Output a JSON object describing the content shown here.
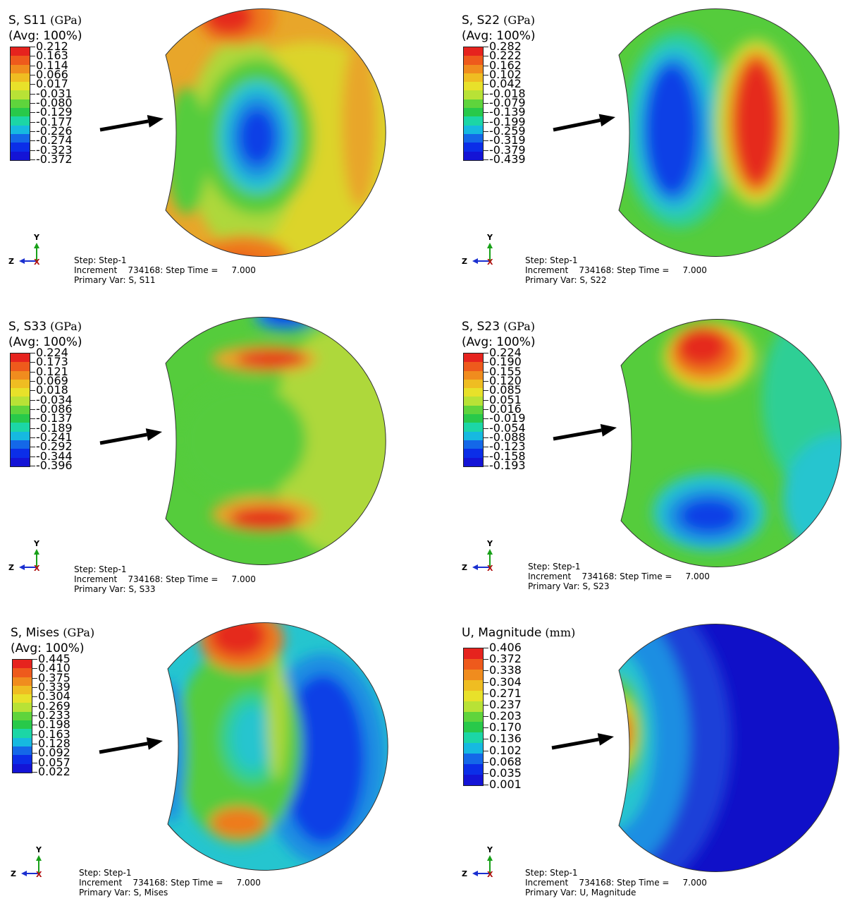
{
  "panels": [
    {
      "variable": "S, S11",
      "unit": "(GPa)",
      "avg": "(Avg: 100%)",
      "ticks": [
        "0.212",
        "0.163",
        "0.114",
        "0.066",
        "0.017",
        "-0.031",
        "-0.080",
        "-0.129",
        "-0.177",
        "-0.226",
        "-0.274",
        "-0.323",
        "-0.372"
      ],
      "step": "Step: Step-1",
      "increment": "Increment    734168: Step Time =     7.000",
      "primary_var": "Primary Var: S, S11"
    },
    {
      "variable": "S, S22",
      "unit": "(GPa)",
      "avg": "(Avg: 100%)",
      "ticks": [
        "0.282",
        "0.222",
        "0.162",
        "0.102",
        "0.042",
        "-0.018",
        "-0.079",
        "-0.139",
        "-0.199",
        "-0.259",
        "-0.319",
        "-0.379",
        "-0.439"
      ],
      "step": "Step: Step-1",
      "increment": "Increment    734168: Step Time =     7.000",
      "primary_var": "Primary Var: S, S22"
    },
    {
      "variable": "S, S33",
      "unit": "(GPa)",
      "avg": "(Avg: 100%)",
      "ticks": [
        "0.224",
        "0.173",
        "0.121",
        "0.069",
        "0.018",
        "-0.034",
        "-0.086",
        "-0.137",
        "-0.189",
        "-0.241",
        "-0.292",
        "-0.344",
        "-0.396"
      ],
      "step": "Step: Step-1",
      "increment": "Increment    734168: Step Time =     7.000",
      "primary_var": "Primary Var: S, S33"
    },
    {
      "variable": "S, S23",
      "unit": "(GPa)",
      "avg": "(Avg: 100%)",
      "ticks": [
        "0.224",
        "0.190",
        "0.155",
        "0.120",
        "0.085",
        "0.051",
        "0.016",
        "-0.019",
        "-0.054",
        "-0.088",
        "-0.123",
        "-0.158",
        "-0.193"
      ],
      "step": "Step: Step-1",
      "increment": "Increment    734168: Step Time =     7.000",
      "primary_var": "Primary Var: S, S23"
    },
    {
      "variable": "S, Mises",
      "unit": "(GPa)",
      "avg": "(Avg: 100%)",
      "ticks": [
        "0.445",
        "0.410",
        "0.375",
        "0.339",
        "0.304",
        "0.269",
        "0.233",
        "0.198",
        "0.163",
        "0.128",
        "0.092",
        "0.057",
        "0.022"
      ],
      "step": "Step: Step-1",
      "increment": "Increment    734168: Step Time =     7.000",
      "primary_var": "Primary Var: S, Mises"
    },
    {
      "variable": "U, Magnitude",
      "unit": "(mm)",
      "avg": "",
      "ticks": [
        "0.406",
        "0.372",
        "0.338",
        "0.304",
        "0.271",
        "0.237",
        "0.203",
        "0.170",
        "0.136",
        "0.102",
        "0.068",
        "0.035",
        "0.001"
      ],
      "step": "Step: Step-1",
      "increment": "Increment    734168: Step Time =     7.000",
      "primary_var": "Primary Var: U, Magnitude"
    }
  ],
  "triad": {
    "y": "Y",
    "z": "Z",
    "x": "X"
  },
  "colormap": [
    "#e6231e",
    "#ee5a1c",
    "#f08c1e",
    "#efbd22",
    "#e8e12a",
    "#b8e236",
    "#5fd43c",
    "#28c94a",
    "#1cd6a6",
    "#16b9e0",
    "#1468e8",
    "#0b2ee8",
    "#1414d6"
  ],
  "field_colors": {
    "red": "#e52b1c",
    "orange": "#ee7a1e",
    "yellow_orange": "#e8a62a",
    "yellow": "#dcd42c",
    "yellow_green": "#aed83a",
    "green": "#55cc3c",
    "cyan_green": "#2fcf95",
    "cyan": "#25c5cf",
    "light_blue": "#1a8ee2",
    "blue": "#0f3fe6",
    "dark_blue": "#1010c8"
  }
}
